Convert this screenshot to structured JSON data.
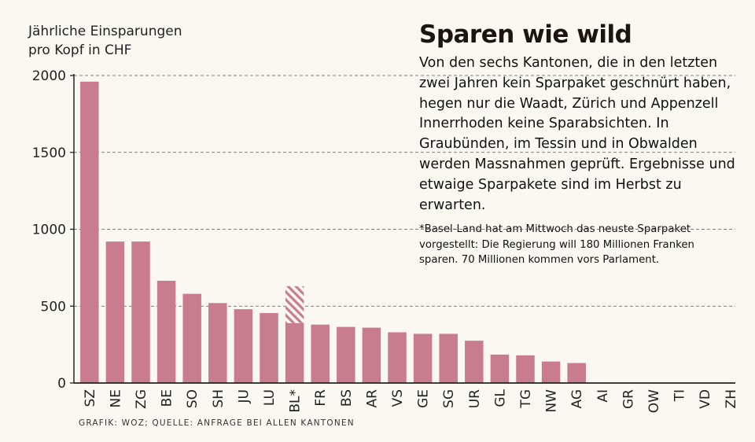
{
  "chart_data": {
    "type": "bar",
    "title": "Sparen wie wild",
    "ylabel": "Jährliche Einsparungen\npro Kopf in CHF",
    "xlabel": "",
    "ylim": [
      0,
      2000
    ],
    "yticks": [
      "0",
      "500",
      "1000",
      "1500",
      "2000"
    ],
    "ytick_values": [
      0,
      500,
      1000,
      1500,
      2000
    ],
    "grid": "horizontal dashed",
    "bar_color": "#c97c8c",
    "categories": [
      "SZ",
      "NE",
      "ZG",
      "BE",
      "SO",
      "SH",
      "JU",
      "LU",
      "BL*",
      "FR",
      "BS",
      "AR",
      "VS",
      "GE",
      "SG",
      "UR",
      "GL",
      "TG",
      "NW",
      "AG",
      "AI",
      "GR",
      "OW",
      "TI",
      "VD",
      "ZH"
    ],
    "values": [
      1960,
      920,
      920,
      665,
      580,
      520,
      480,
      455,
      390,
      380,
      365,
      360,
      330,
      320,
      320,
      275,
      185,
      180,
      140,
      130,
      0,
      0,
      0,
      0,
      0,
      0
    ],
    "hatched_extra": {
      "category": "BL*",
      "from": 390,
      "to": 630
    }
  },
  "text": {
    "heading": "Sparen wie wild",
    "body": "Von den sechs Kantonen, die in den letzten zwei Jahren kein Sparpaket geschnürt haben, hegen nur die Waadt, Zürich und Appenzell Innerrhoden keine Sparabsichten. In Graubünden, im Tessin und in Obwalden werden Massnahmen geprüft. Ergebnisse und etwaige Sparpakete sind im Herbst zu erwarten.",
    "footnote": "*Basel-Land hat am Mittwoch das neuste Sparpaket vorgestellt: Die Regierung will 180 Millionen Franken sparen. 70 Millionen kommen vors Parlament.",
    "credit": "GRAFIK: WOZ;  QUELLE: ANFRAGE BEI ALLEN KANTONEN"
  }
}
